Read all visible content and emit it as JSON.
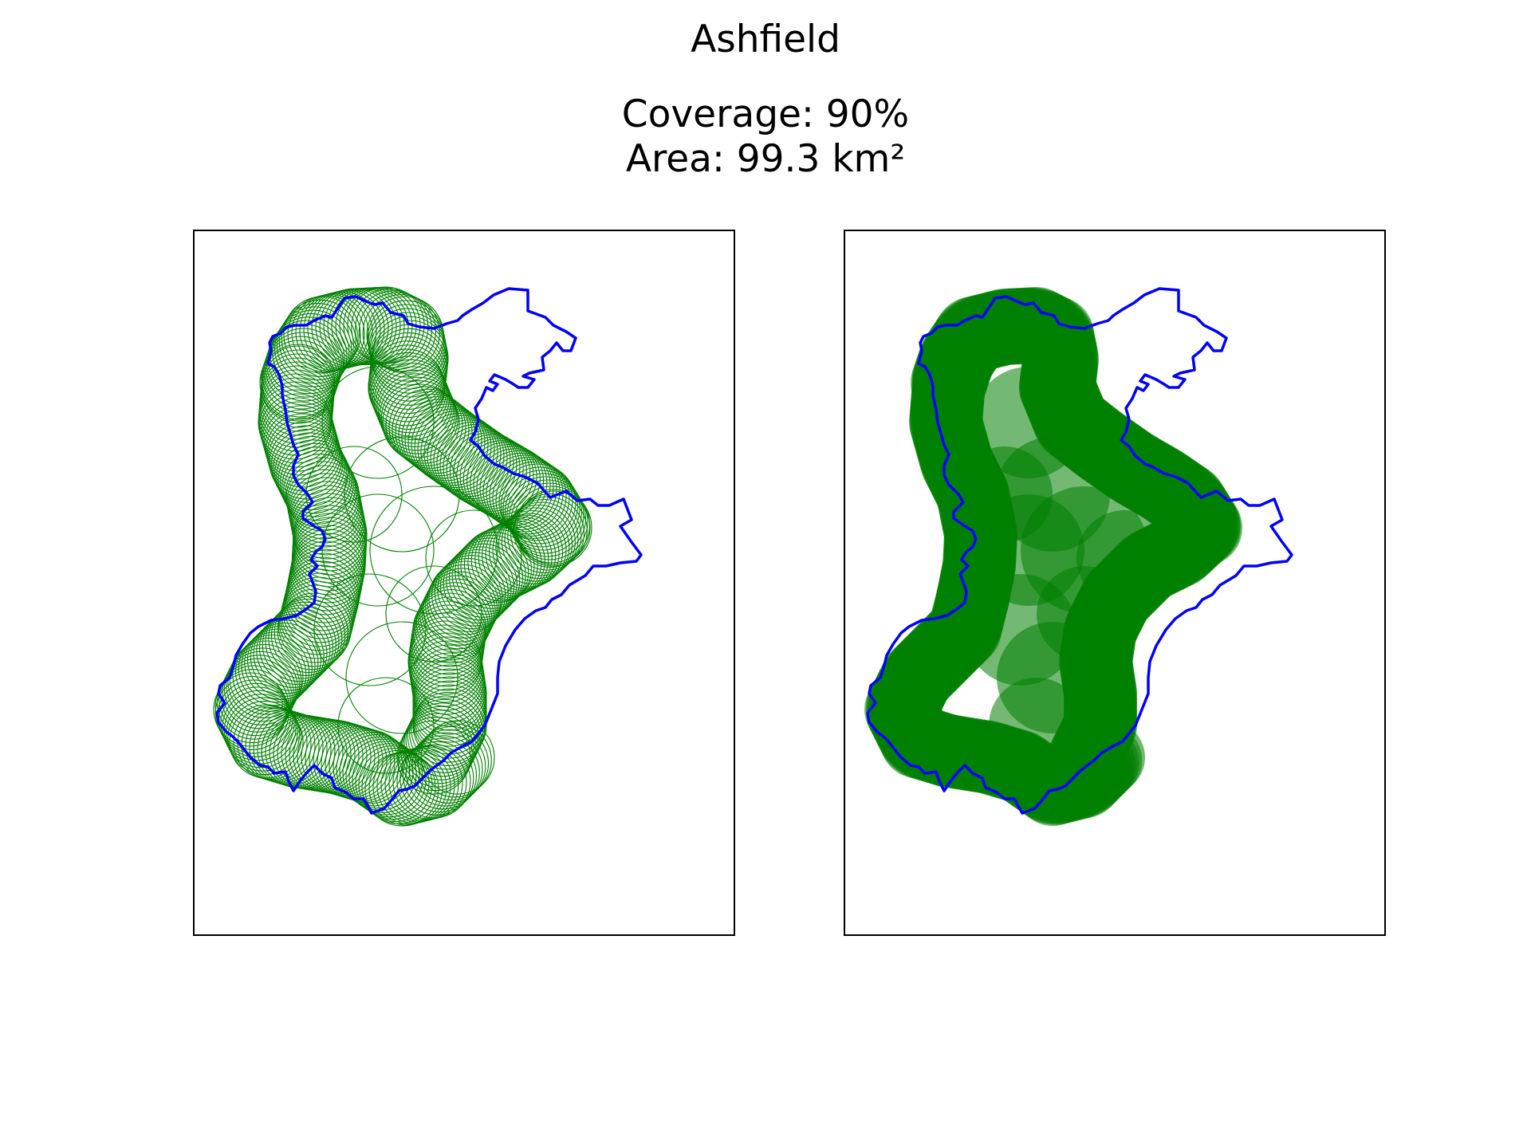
{
  "figure": {
    "title": "Ashfield",
    "coverage_label": "Coverage: 90%",
    "area_label": "Area: 99.3 km²"
  },
  "colors": {
    "boundary": "#0000ff",
    "circles": "#008000",
    "background": "#ffffff",
    "frame": "#000000"
  },
  "panels": [
    {
      "id": "outline",
      "style": "circle-outlines"
    },
    {
      "id": "filled",
      "style": "filled-circles"
    }
  ]
}
